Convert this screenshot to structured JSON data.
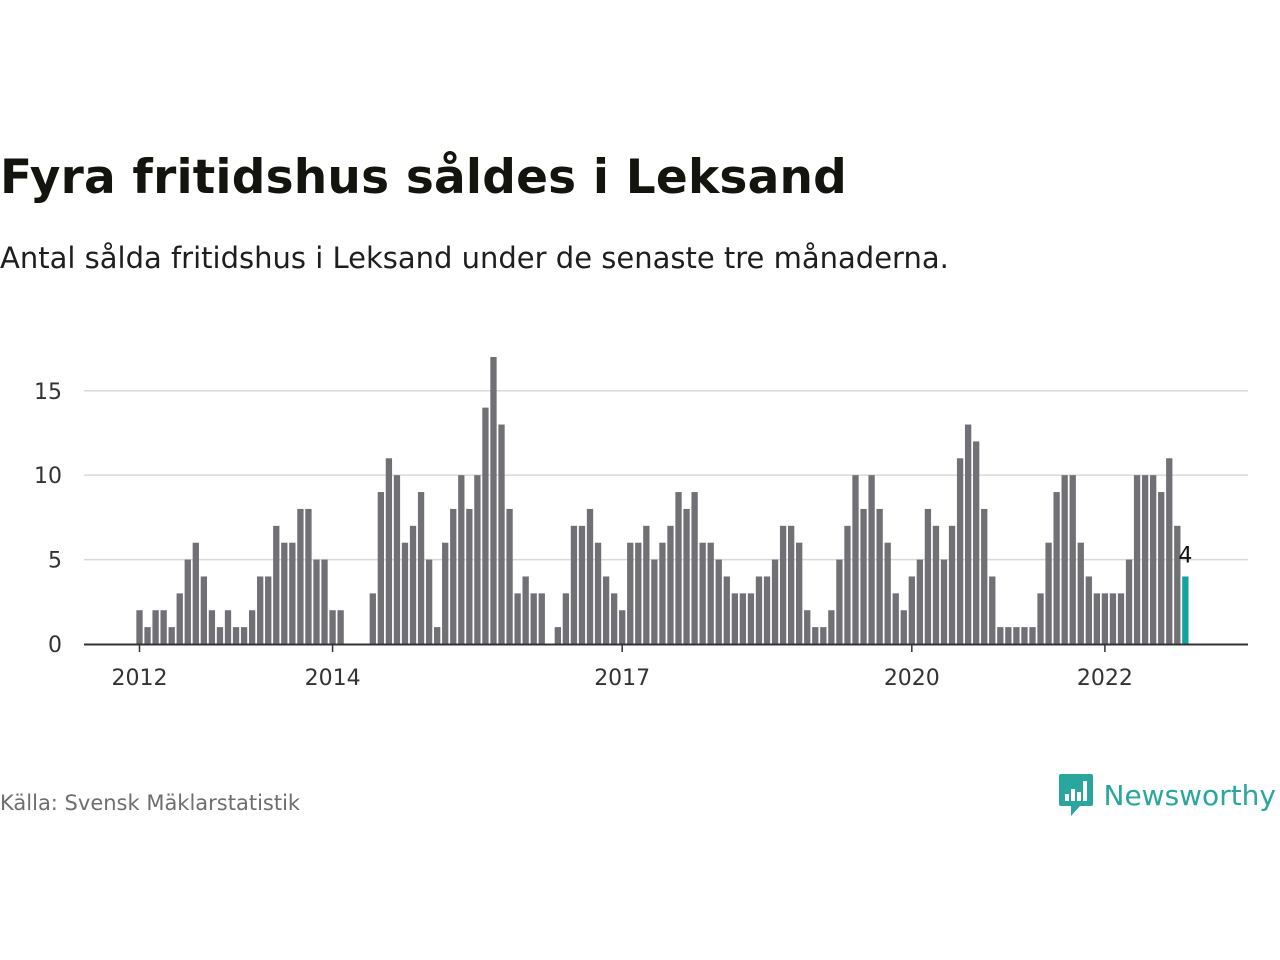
{
  "title": "Fyra fritidshus såldes i Leksand",
  "subtitle": "Antal sålda fritidshus i Leksand under de senaste tre månaderna.",
  "source": "Källa: Svensk Mäklarstatistik",
  "brand": {
    "name": "Newsworthy",
    "icon": "newsworthy-logo-icon"
  },
  "colors": {
    "bar": "#717075",
    "highlight": "#13a29c",
    "grid": "#d9d9d9",
    "axis": "#333333",
    "tick_text": "#333333",
    "brand": "#2aa69e"
  },
  "chart_data": {
    "type": "bar",
    "title": "",
    "xlabel": "",
    "ylabel": "",
    "ylim": [
      0,
      17
    ],
    "y_ticks": [
      0,
      5,
      10,
      15
    ],
    "x_tick_labels": [
      "2012",
      "2014",
      "2017",
      "2020",
      "2022"
    ],
    "x_tick_at_bar": [
      0,
      24,
      60,
      96,
      120
    ],
    "grid": "horizontal",
    "start": "2012-01",
    "values": [
      2,
      1,
      2,
      2,
      1,
      3,
      5,
      6,
      4,
      2,
      1,
      2,
      1,
      1,
      2,
      4,
      4,
      7,
      6,
      6,
      8,
      8,
      5,
      5,
      2,
      2,
      0,
      0,
      0,
      3,
      9,
      11,
      10,
      6,
      7,
      9,
      5,
      1,
      6,
      8,
      10,
      8,
      10,
      14,
      17,
      13,
      8,
      3,
      4,
      3,
      3,
      0,
      1,
      3,
      7,
      7,
      8,
      6,
      4,
      3,
      2,
      6,
      6,
      7,
      5,
      6,
      7,
      9,
      8,
      9,
      6,
      6,
      5,
      4,
      3,
      3,
      3,
      4,
      4,
      5,
      7,
      7,
      6,
      2,
      1,
      1,
      2,
      5,
      7,
      10,
      8,
      10,
      8,
      6,
      3,
      2,
      4,
      5,
      8,
      7,
      5,
      7,
      11,
      13,
      12,
      8,
      4,
      1,
      1,
      1,
      1,
      1,
      3,
      6,
      9,
      10,
      10,
      6,
      4,
      3,
      3,
      3,
      3,
      5,
      10,
      10,
      10,
      9,
      11,
      7,
      4
    ],
    "highlight_last": true,
    "last_value_label": "4"
  }
}
